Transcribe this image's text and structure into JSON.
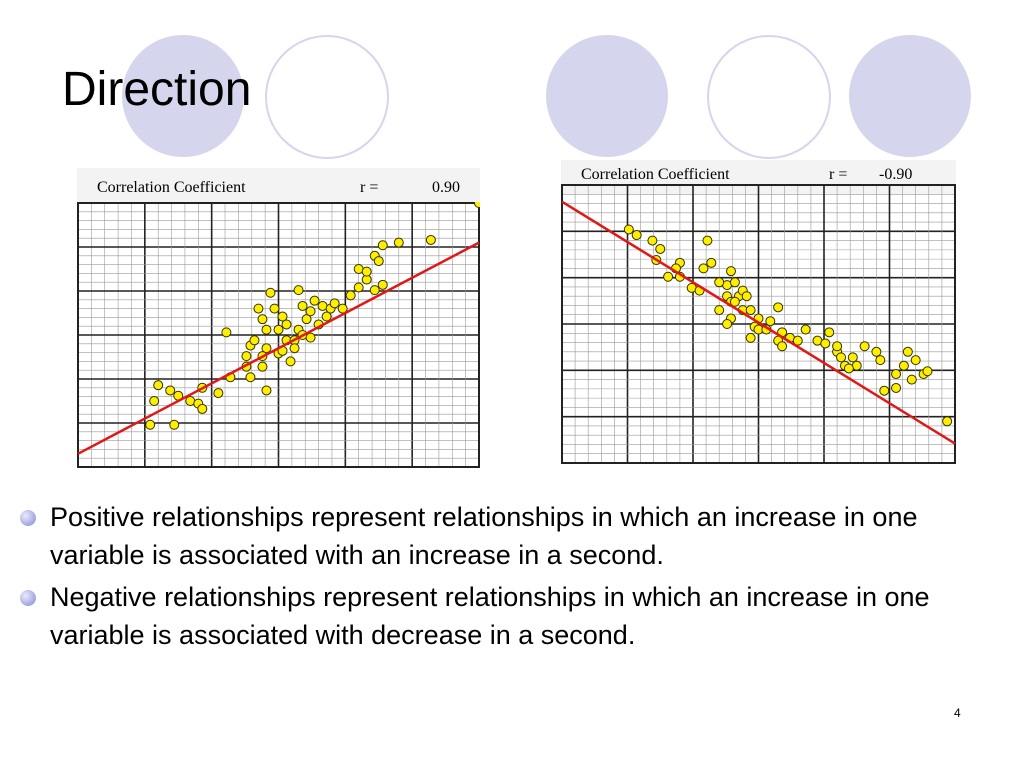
{
  "slide": {
    "title": "Direction",
    "page_number": "4",
    "bullets": [
      "Positive relationships represent relationships in which an increase in one variable is associated with an increase in a second.",
      "Negative relationships represent relationships in which an increase in one variable is associated with decrease in a second."
    ]
  },
  "colors": {
    "deco_circle": "#d5d5ee",
    "regression_line": "#e01818",
    "points": "#ffee00",
    "grid_major": "#222222",
    "grid_minor": "#9a9a9a"
  },
  "chart_data": [
    {
      "type": "scatter",
      "header_label": "Correlation Coefficient",
      "r_label": "r =",
      "r_value": "0.90",
      "xlim": [
        0,
        100
      ],
      "ylim": [
        0,
        100
      ],
      "line": {
        "x": [
          0,
          100
        ],
        "y": [
          5,
          85
        ]
      },
      "points": [
        [
          18,
          16
        ],
        [
          24,
          16
        ],
        [
          19,
          25
        ],
        [
          20,
          31
        ],
        [
          25,
          27
        ],
        [
          23,
          29
        ],
        [
          28,
          25
        ],
        [
          30,
          24
        ],
        [
          31,
          22
        ],
        [
          31,
          30
        ],
        [
          35,
          28
        ],
        [
          38,
          34
        ],
        [
          42,
          38
        ],
        [
          43,
          34
        ],
        [
          43,
          46
        ],
        [
          44,
          48
        ],
        [
          37,
          51
        ],
        [
          45,
          60
        ],
        [
          46,
          56
        ],
        [
          47,
          52
        ],
        [
          47,
          45
        ],
        [
          46,
          42
        ],
        [
          42,
          42
        ],
        [
          46,
          38
        ],
        [
          47,
          29
        ],
        [
          50,
          43
        ],
        [
          50,
          52
        ],
        [
          51,
          57
        ],
        [
          52,
          54
        ],
        [
          52,
          48
        ],
        [
          51,
          44
        ],
        [
          53,
          40
        ],
        [
          54,
          48
        ],
        [
          54,
          45
        ],
        [
          55,
          52
        ],
        [
          56,
          50
        ],
        [
          57,
          56
        ],
        [
          58,
          49
        ],
        [
          59,
          63
        ],
        [
          60,
          54
        ],
        [
          61,
          61
        ],
        [
          56,
          61
        ],
        [
          58,
          59
        ],
        [
          49,
          60
        ],
        [
          48,
          66
        ],
        [
          55,
          67
        ],
        [
          62,
          57
        ],
        [
          63,
          60
        ],
        [
          64,
          62
        ],
        [
          66,
          60
        ],
        [
          68,
          65
        ],
        [
          70,
          68
        ],
        [
          74,
          67
        ],
        [
          72,
          71
        ],
        [
          76,
          69
        ],
        [
          70,
          75
        ],
        [
          72,
          74
        ],
        [
          74,
          80
        ],
        [
          75,
          78
        ],
        [
          76,
          84
        ],
        [
          80,
          85
        ],
        [
          88,
          86
        ],
        [
          100,
          100
        ]
      ]
    },
    {
      "type": "scatter",
      "header_label": "Correlation Coefficient",
      "r_label": "r =",
      "r_value": "-0.90",
      "xlim": [
        0,
        100
      ],
      "ylim": [
        0,
        100
      ],
      "line": {
        "x": [
          0,
          100
        ],
        "y": [
          94,
          7
        ]
      },
      "points": [
        [
          17,
          84
        ],
        [
          23,
          80
        ],
        [
          19,
          82
        ],
        [
          25,
          77
        ],
        [
          24,
          73
        ],
        [
          30,
          72
        ],
        [
          27,
          67
        ],
        [
          29,
          70
        ],
        [
          37,
          80
        ],
        [
          38,
          72
        ],
        [
          42,
          64
        ],
        [
          43,
          69
        ],
        [
          44,
          65
        ],
        [
          45,
          60
        ],
        [
          36,
          70
        ],
        [
          30,
          67
        ],
        [
          33,
          63
        ],
        [
          35,
          62
        ],
        [
          40,
          65
        ],
        [
          42,
          60
        ],
        [
          43,
          58
        ],
        [
          44,
          58
        ],
        [
          46,
          62
        ],
        [
          43,
          52
        ],
        [
          46,
          55
        ],
        [
          47,
          60
        ],
        [
          48,
          55
        ],
        [
          40,
          55
        ],
        [
          42,
          50
        ],
        [
          48,
          45
        ],
        [
          49,
          49
        ],
        [
          50,
          52
        ],
        [
          50,
          48
        ],
        [
          52,
          48
        ],
        [
          53,
          51
        ],
        [
          55,
          56
        ],
        [
          56,
          47
        ],
        [
          55,
          44
        ],
        [
          58,
          45
        ],
        [
          56,
          42
        ],
        [
          60,
          44
        ],
        [
          62,
          48
        ],
        [
          65,
          44
        ],
        [
          67,
          43
        ],
        [
          70,
          40
        ],
        [
          71,
          38
        ],
        [
          72,
          35
        ],
        [
          75,
          35
        ],
        [
          73,
          34
        ],
        [
          77,
          42
        ],
        [
          74,
          38
        ],
        [
          70,
          42
        ],
        [
          68,
          47
        ],
        [
          81,
          37
        ],
        [
          80,
          40
        ],
        [
          88,
          40
        ],
        [
          90,
          37
        ],
        [
          87,
          35
        ],
        [
          92,
          32
        ],
        [
          98,
          15
        ],
        [
          89,
          30
        ],
        [
          85,
          27
        ],
        [
          82,
          26
        ],
        [
          85,
          32
        ],
        [
          93,
          33
        ]
      ]
    }
  ]
}
